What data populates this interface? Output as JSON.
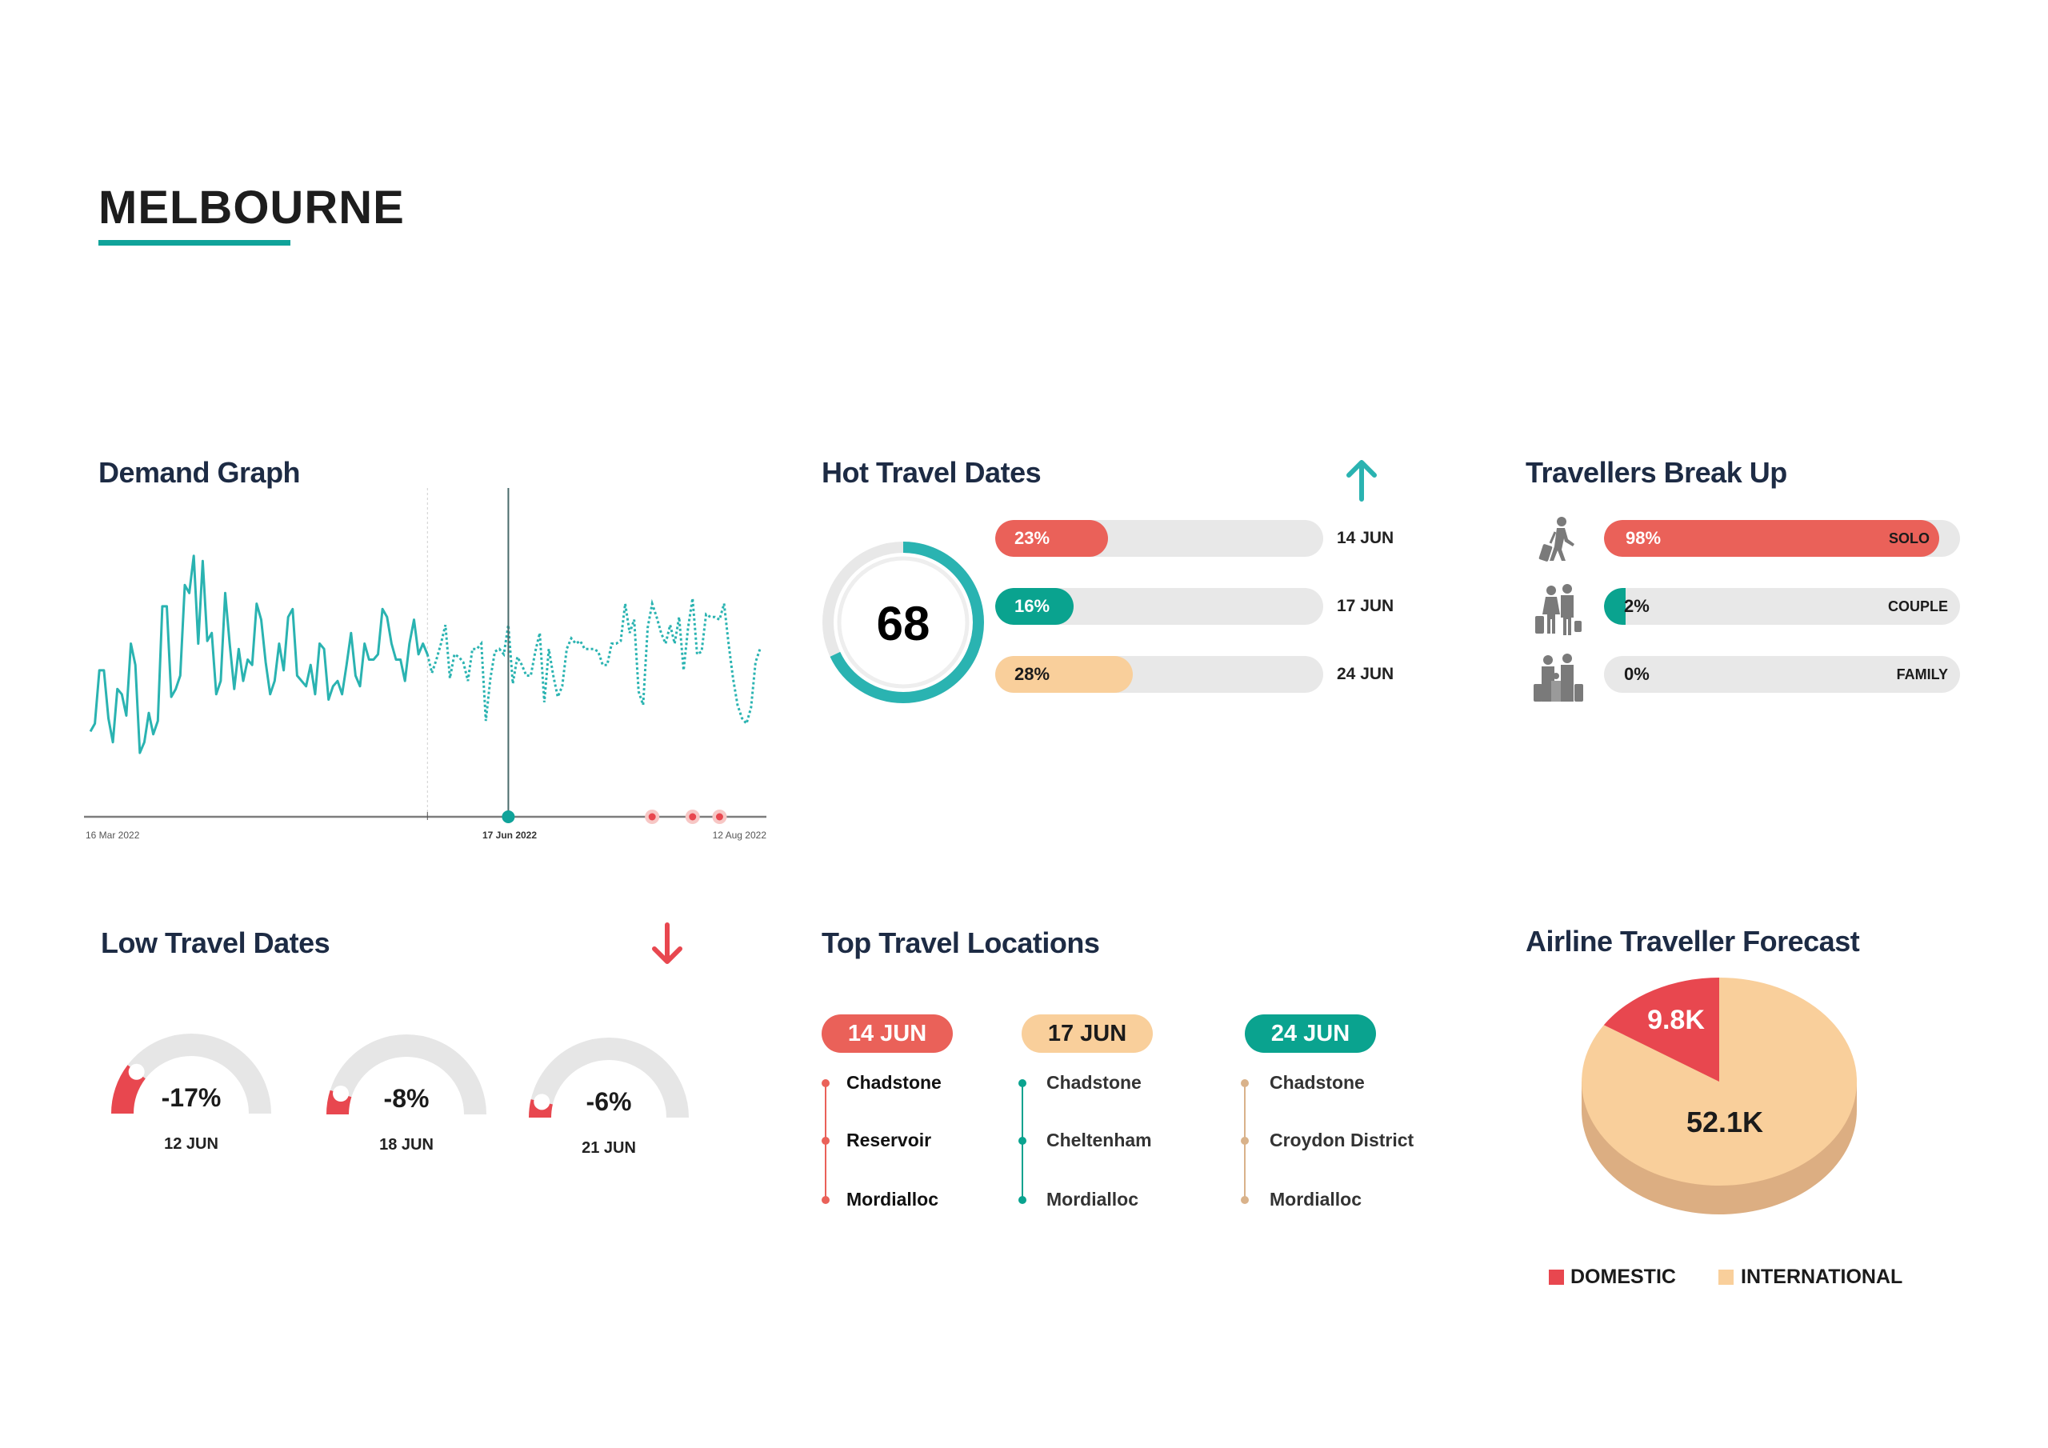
{
  "page": {
    "title": "MELBOURNE"
  },
  "colors": {
    "teal": "#2ab3b1",
    "teal_dark": "#0aa38f",
    "red": "#ea6159",
    "peach": "#f9cf9b",
    "track": "#e8e8e8",
    "navy": "#1d2b44",
    "pie_red": "#e8474f",
    "pie_side": "#dcae82"
  },
  "demand_graph": {
    "title": "Demand Graph",
    "chart_data": {
      "type": "line",
      "x_start": "2022-03-16",
      "x_end": "2022-08-12",
      "frequency": "daily",
      "tick_labels": [
        "16 Mar 2022",
        "17 Jun 2022",
        "12 Aug 2022"
      ],
      "selected_date": "2022-06-17",
      "highlighted_dates": [
        "2022-07-19",
        "2022-07-28",
        "2022-08-03"
      ],
      "series": [
        {
          "style": "solid",
          "values": [
            32,
            35,
            55,
            55,
            37,
            28,
            48,
            46,
            38,
            65,
            57,
            24,
            28,
            39,
            31,
            36,
            79,
            79,
            45,
            48,
            53,
            87,
            84,
            98,
            65,
            96,
            66,
            69,
            46,
            51,
            84,
            65,
            48,
            63,
            51,
            59,
            57,
            80,
            74,
            58,
            46,
            51,
            65,
            55,
            75,
            78,
            53,
            51,
            49,
            57,
            46,
            65,
            63,
            44,
            49,
            51,
            46,
            57,
            69,
            53,
            49,
            65,
            59,
            59,
            61,
            78,
            75,
            65,
            59,
            59,
            51,
            65,
            74,
            61,
            65,
            61
          ]
        },
        {
          "style": "dotted",
          "values": [
            54,
            59,
            65,
            72,
            52,
            61,
            60,
            58,
            51,
            63,
            63,
            65,
            36,
            52,
            62,
            63,
            61,
            72,
            50,
            60,
            57,
            53,
            53,
            62,
            69,
            43,
            63,
            53,
            45,
            49,
            63,
            67,
            65,
            66,
            63,
            63,
            63,
            62,
            57,
            57,
            65,
            65,
            66,
            80,
            69,
            74,
            47,
            42,
            71,
            80,
            75,
            69,
            65,
            72,
            65,
            75,
            55,
            71,
            82,
            61,
            62,
            76,
            75,
            75,
            74,
            80,
            65,
            52,
            42,
            37,
            35,
            41,
            58,
            63
          ]
        }
      ],
      "ylim": [
        0,
        110
      ],
      "grid": false
    }
  },
  "hot_travel_dates": {
    "title": "Hot Travel Dates",
    "trend_icon": "arrow-up-icon",
    "score": "68",
    "score_value": 68,
    "bars": [
      {
        "pct_label": "23%",
        "value": 23,
        "date": "14 JUN",
        "color": "#ea6159",
        "text_color": "#ffffff"
      },
      {
        "pct_label": "16%",
        "value": 16,
        "date": "17 JUN",
        "color": "#0aa38f",
        "text_color": "#ffffff"
      },
      {
        "pct_label": "28%",
        "value": 28,
        "date": "24 JUN",
        "color": "#f9cf9b",
        "text_color": "#1b1b1b"
      }
    ]
  },
  "travellers_break_up": {
    "title": "Travellers Break Up",
    "rows": [
      {
        "icon": "solo-traveller-icon",
        "pct_label": "98%",
        "value": 98,
        "label": "SOLO",
        "color": "#ea6159",
        "text_color": "#ffffff"
      },
      {
        "icon": "couple-travellers-icon",
        "pct_label": "2%",
        "value": 2,
        "label": "COUPLE",
        "color": "#0aa38f",
        "text_color": "#1b1b1b"
      },
      {
        "icon": "family-travellers-icon",
        "pct_label": "0%",
        "value": 0,
        "label": "FAMILY",
        "color": "#0aa38f",
        "text_color": "#1b1b1b"
      }
    ]
  },
  "low_travel_dates": {
    "title": "Low Travel Dates",
    "trend_icon": "arrow-down-icon",
    "gauges": [
      {
        "value_label": "-17%",
        "value": -17,
        "date": "12 JUN"
      },
      {
        "value_label": "-8%",
        "value": -8,
        "date": "18 JUN"
      },
      {
        "value_label": "-6%",
        "value": -6,
        "date": "21 JUN"
      }
    ]
  },
  "top_travel_locations": {
    "title": "Top Travel Locations",
    "columns": [
      {
        "date": "14 JUN",
        "color": "#ea6159",
        "text_color": "#ffffff",
        "locations": [
          "Chadstone",
          "Reservoir",
          "Mordialloc"
        ]
      },
      {
        "date": "17 JUN",
        "color": "#f9cf9b",
        "text_color": "#1b1b1b",
        "locations": [
          "Chadstone",
          "Cheltenham",
          "Mordialloc"
        ]
      },
      {
        "date": "24 JUN",
        "color": "#0aa38f",
        "text_color": "#ffffff",
        "locations": [
          "Chadstone",
          "Croydon District",
          "Mordialloc"
        ]
      }
    ]
  },
  "airline_forecast": {
    "title": "Airline Traveller Forecast",
    "chart_data": {
      "type": "pie",
      "slices": [
        {
          "name": "DOMESTIC",
          "value": 9.8,
          "label": "9.8K",
          "color": "#e8474f"
        },
        {
          "name": "INTERNATIONAL",
          "value": 52.1,
          "label": "52.1K",
          "color": "#f9cf9b"
        }
      ],
      "legend": "bottom"
    }
  }
}
